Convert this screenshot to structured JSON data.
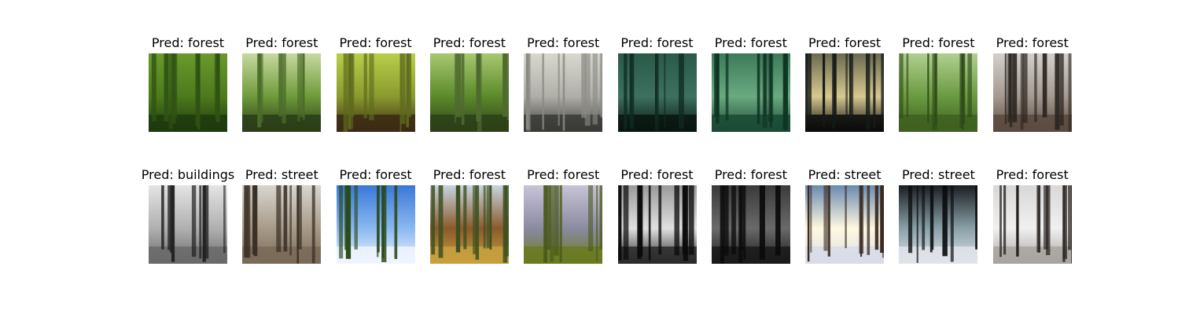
{
  "predictions": [
    {
      "label": "Pred: forest",
      "scene": "green-forest"
    },
    {
      "label": "Pred: forest",
      "scene": "fern-forest"
    },
    {
      "label": "Pred: forest",
      "scene": "sunlit-forest"
    },
    {
      "label": "Pred: forest",
      "scene": "green-undergrowth"
    },
    {
      "label": "Pred: forest",
      "scene": "pale-forest"
    },
    {
      "label": "Pred: forest",
      "scene": "dark-teal-forest"
    },
    {
      "label": "Pred: forest",
      "scene": "bamboo-forest"
    },
    {
      "label": "Pred: forest",
      "scene": "backlit-forest"
    },
    {
      "label": "Pred: forest",
      "scene": "light-green-forest"
    },
    {
      "label": "Pred: forest",
      "scene": "bare-winter-forest"
    },
    {
      "label": "Pred: buildings",
      "scene": "grayscale-trees"
    },
    {
      "label": "Pred: street",
      "scene": "misty-trail"
    },
    {
      "label": "Pred: forest",
      "scene": "snowy-pines-blue-sky"
    },
    {
      "label": "Pred: forest",
      "scene": "autumn-meadow"
    },
    {
      "label": "Pred: forest",
      "scene": "conifer-stand"
    },
    {
      "label": "Pred: forest",
      "scene": "bw-sunbeams"
    },
    {
      "label": "Pred: forest",
      "scene": "dark-foggy-forest"
    },
    {
      "label": "Pred: street",
      "scene": "snowy-sun-forest"
    },
    {
      "label": "Pred: street",
      "scene": "dark-snow-trunks"
    },
    {
      "label": "Pred: forest",
      "scene": "frosty-forest"
    }
  ],
  "colors": {
    "green-forest": [
      "#6a9a2c",
      "#2f5214",
      "#1f3a0d",
      "#4d7a1c"
    ],
    "fern-forest": [
      "#c6d9a0",
      "#4b6b2a",
      "#2a3d18",
      "#6f9a3a"
    ],
    "sunlit-forest": [
      "#b8cf4a",
      "#5e6a1e",
      "#3b2a14",
      "#8a9a2e"
    ],
    "green-undergrowth": [
      "#a8c870",
      "#4f6a30",
      "#2d4018",
      "#5c8a2a"
    ],
    "pale-forest": [
      "#d8d8d0",
      "#8a8a84",
      "#3a3a36",
      "#b0aea8"
    ],
    "dark-teal-forest": [
      "#2a5a48",
      "#0e2a20",
      "#08150f",
      "#3d7060"
    ],
    "bamboo-forest": [
      "#3c7a5a",
      "#0f3424",
      "#1a4a34",
      "#6aaa80"
    ],
    "backlit-forest": [
      "#6a6a50",
      "#151a18",
      "#0a0c0a",
      "#d8c890"
    ],
    "light-green-forest": [
      "#b0d090",
      "#2f4a1a",
      "#3e6020",
      "#6a9a40"
    ],
    "bare-winter-forest": [
      "#d4d0cc",
      "#2a2420",
      "#5a4a40",
      "#a49a90"
    ],
    "grayscale-trees": [
      "#e4e4e4",
      "#202020",
      "#6a6a6a",
      "#b0b0b0"
    ],
    "misty-trail": [
      "#d8d6d0",
      "#3a3026",
      "#7a6a58",
      "#a89a88"
    ],
    "snowy-pines-blue-sky": [
      "#3a78d8",
      "#2a4a1a",
      "#f0f4ff",
      "#8ab8f0"
    ],
    "autumn-meadow": [
      "#c8d4e0",
      "#3a5020",
      "#c8a040",
      "#8a5a2a"
    ],
    "conifer-stand": [
      "#c8c4d8",
      "#4a5a1a",
      "#6a7a20",
      "#8a8aa0"
    ],
    "bw-sunbeams": [
      "#9a9a9a",
      "#0a0a0a",
      "#2a2a2a",
      "#e0e0e0"
    ],
    "dark-foggy-forest": [
      "#3a3a3a",
      "#0a0a0a",
      "#1a1a1a",
      "#6a6a6a"
    ],
    "snowy-sun-forest": [
      "#6a8ab0",
      "#3a2a20",
      "#d8dce8",
      "#fff8e0"
    ],
    "dark-snow-trunks": [
      "#1a1e22",
      "#0a0c0e",
      "#e0e4ea",
      "#8aa0a8"
    ],
    "frosty-forest": [
      "#d8d8d8",
      "#2a2420",
      "#a8a4a0",
      "#f0f0f0"
    ]
  }
}
